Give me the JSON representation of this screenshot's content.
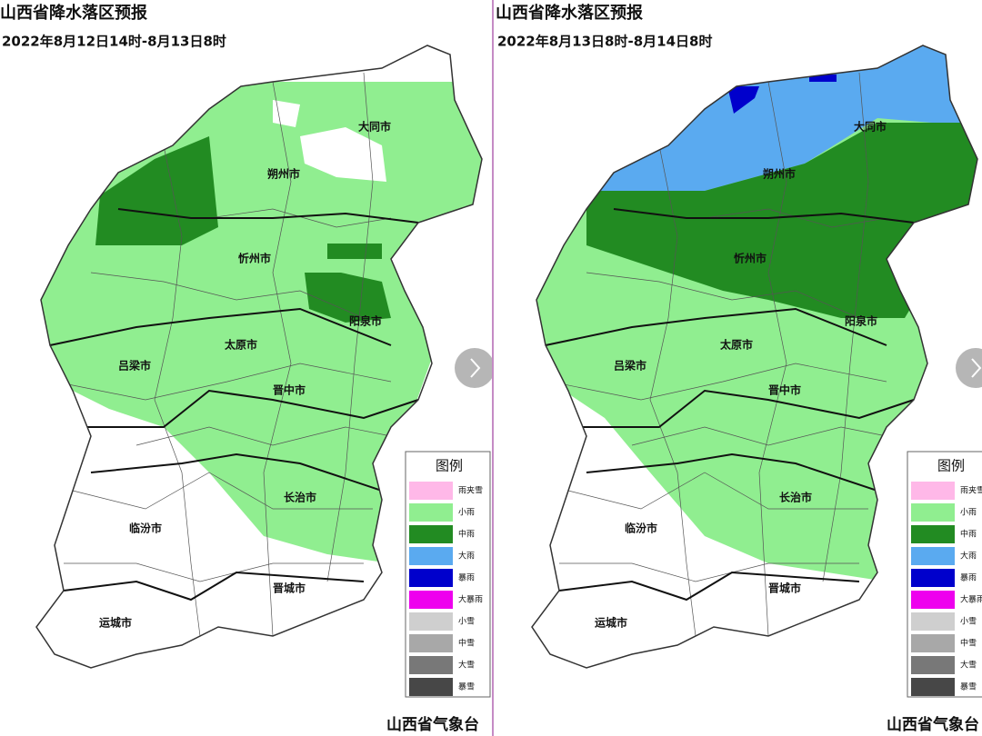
{
  "panels": [
    {
      "title": "山西省降水落区预报",
      "period": "2022年8月12日14时-8月13日8时",
      "cities": [
        "大同市",
        "朔州市",
        "忻州市",
        "阳泉市",
        "太原市",
        "吕梁市",
        "晋中市",
        "长治市",
        "临汾市",
        "晋城市",
        "运城市"
      ],
      "legend": {
        "title": "图例",
        "items": [
          "雨夹雪",
          "小雨",
          "中雨",
          "大雨",
          "暴雨",
          "大暴雨",
          "小雪",
          "中雪",
          "大雪",
          "暴雪"
        ]
      },
      "footer": "山西省气象台"
    },
    {
      "title": "山西省降水落区预报",
      "period": "2022年8月13日8时-8月14日8时",
      "cities": [
        "大同市",
        "朔州市",
        "忻州市",
        "阳泉市",
        "太原市",
        "吕梁市",
        "晋中市",
        "长治市",
        "临汾市",
        "晋城市",
        "运城市"
      ],
      "legend": {
        "title": "图例",
        "items": [
          "雨夹雪",
          "小雨",
          "中雨",
          "大雨",
          "暴雨",
          "大暴雨",
          "小雪",
          "中雪",
          "大雪",
          "暴雪"
        ]
      },
      "footer": "山西省气象台"
    }
  ]
}
